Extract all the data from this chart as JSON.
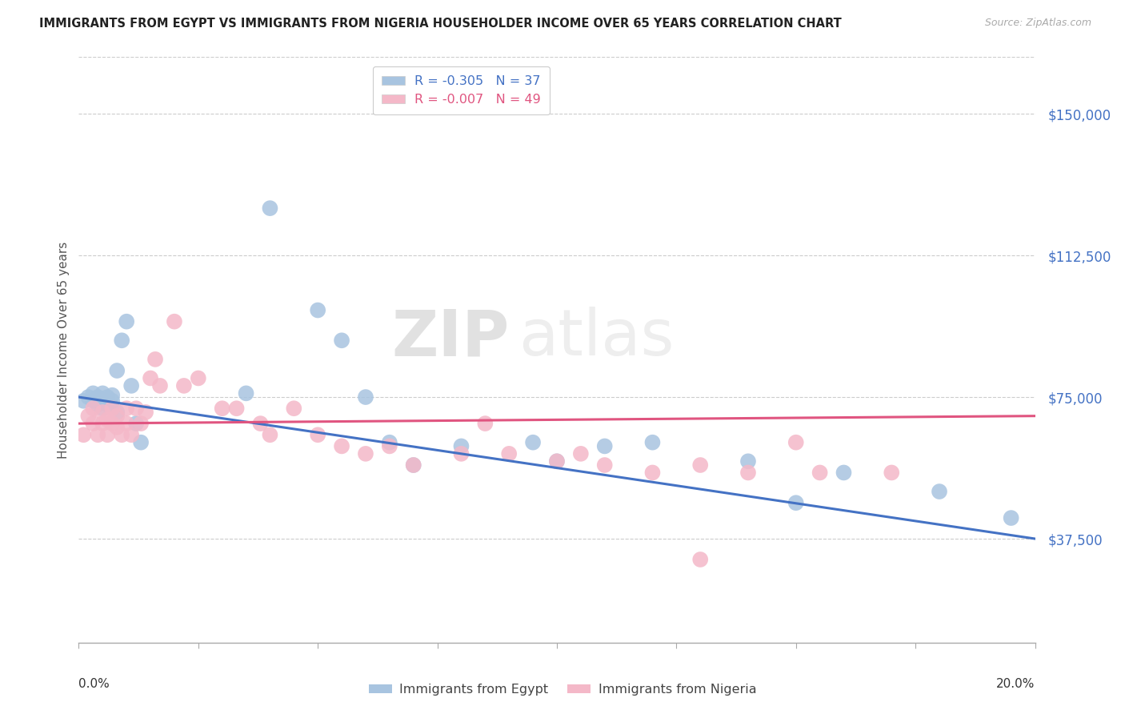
{
  "title": "IMMIGRANTS FROM EGYPT VS IMMIGRANTS FROM NIGERIA HOUSEHOLDER INCOME OVER 65 YEARS CORRELATION CHART",
  "source": "Source: ZipAtlas.com",
  "ylabel": "Householder Income Over 65 years",
  "yticks": [
    37500,
    75000,
    112500,
    150000
  ],
  "ytick_labels": [
    "$37,500",
    "$75,000",
    "$112,500",
    "$150,000"
  ],
  "xlim": [
    0.0,
    0.2
  ],
  "ylim": [
    10000,
    165000
  ],
  "egypt_R": -0.305,
  "egypt_N": 37,
  "nigeria_R": -0.007,
  "nigeria_N": 49,
  "legend_label_egypt": "R = -0.305   N = 37",
  "legend_label_nigeria": "R = -0.007   N = 49",
  "bottom_legend_egypt": "Immigrants from Egypt",
  "bottom_legend_nigeria": "Immigrants from Nigeria",
  "egypt_color": "#a8c4e0",
  "nigeria_color": "#f4b8c8",
  "egypt_line_color": "#4472c4",
  "nigeria_line_color": "#e05580",
  "watermark_zip": "ZIP",
  "watermark_atlas": "atlas",
  "egypt_x": [
    0.001,
    0.002,
    0.003,
    0.003,
    0.004,
    0.004,
    0.005,
    0.005,
    0.005,
    0.006,
    0.006,
    0.007,
    0.007,
    0.008,
    0.008,
    0.009,
    0.01,
    0.011,
    0.012,
    0.013,
    0.035,
    0.04,
    0.05,
    0.055,
    0.06,
    0.065,
    0.07,
    0.08,
    0.095,
    0.1,
    0.11,
    0.12,
    0.14,
    0.15,
    0.16,
    0.18,
    0.195
  ],
  "egypt_y": [
    74000,
    75000,
    76000,
    74000,
    75000,
    73000,
    76000,
    74000,
    72000,
    75000,
    73000,
    75500,
    74000,
    82000,
    71000,
    90000,
    95000,
    78000,
    68000,
    63000,
    76000,
    125000,
    98000,
    90000,
    75000,
    63000,
    57000,
    62000,
    63000,
    58000,
    62000,
    63000,
    58000,
    47000,
    55000,
    50000,
    43000
  ],
  "nigeria_x": [
    0.001,
    0.002,
    0.003,
    0.003,
    0.004,
    0.005,
    0.005,
    0.006,
    0.006,
    0.007,
    0.007,
    0.008,
    0.008,
    0.009,
    0.01,
    0.01,
    0.011,
    0.012,
    0.013,
    0.014,
    0.015,
    0.016,
    0.017,
    0.02,
    0.022,
    0.025,
    0.03,
    0.033,
    0.038,
    0.04,
    0.045,
    0.05,
    0.055,
    0.06,
    0.065,
    0.07,
    0.08,
    0.085,
    0.09,
    0.1,
    0.105,
    0.11,
    0.12,
    0.13,
    0.14,
    0.15,
    0.155,
    0.17,
    0.13
  ],
  "nigeria_y": [
    65000,
    70000,
    68000,
    72000,
    65000,
    68000,
    71000,
    65000,
    69000,
    68000,
    72000,
    67000,
    70000,
    65000,
    68000,
    72000,
    65000,
    72000,
    68000,
    71000,
    80000,
    85000,
    78000,
    95000,
    78000,
    80000,
    72000,
    72000,
    68000,
    65000,
    72000,
    65000,
    62000,
    60000,
    62000,
    57000,
    60000,
    68000,
    60000,
    58000,
    60000,
    57000,
    55000,
    57000,
    55000,
    63000,
    55000,
    55000,
    32000
  ]
}
